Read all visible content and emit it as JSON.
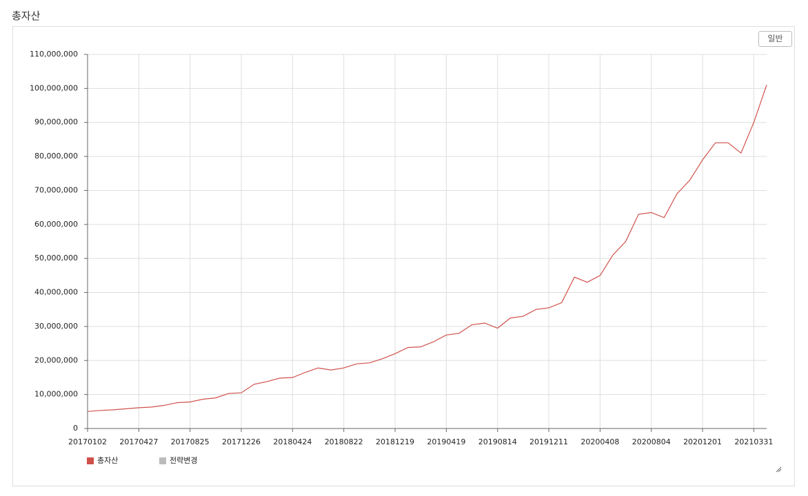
{
  "page_title": "총자산",
  "button_label": "일반",
  "chart_data": {
    "type": "line",
    "categories": [
      "20170102",
      null,
      null,
      null,
      "20170427",
      null,
      null,
      null,
      "20170825",
      null,
      null,
      null,
      "20171226",
      null,
      null,
      null,
      "20180424",
      null,
      null,
      null,
      "20180822",
      null,
      null,
      null,
      "20181219",
      null,
      null,
      null,
      "20190419",
      null,
      null,
      null,
      "20190814",
      null,
      null,
      null,
      "20191211",
      null,
      null,
      null,
      "20200408",
      null,
      null,
      null,
      "20200804",
      null,
      null,
      null,
      "20201201",
      null,
      null,
      null,
      "20210331",
      null
    ],
    "series": [
      {
        "name": "총자산",
        "color": "#d0504a",
        "values": [
          5000000,
          5300000,
          5500000,
          5800000,
          6100000,
          6300000,
          6800000,
          7600000,
          7800000,
          8600000,
          9000000,
          10300000,
          10500000,
          13000000,
          13800000,
          14800000,
          15000000,
          16500000,
          17800000,
          17200000,
          17800000,
          19000000,
          19300000,
          20500000,
          22000000,
          23800000,
          24000000,
          25500000,
          27500000,
          28000000,
          30500000,
          31000000,
          29500000,
          32500000,
          33000000,
          35000000,
          35500000,
          37000000,
          44500000,
          43000000,
          45000000,
          51000000,
          55000000,
          63000000,
          63500000,
          62000000,
          69000000,
          73000000,
          79000000,
          84000000,
          84000000,
          81000000,
          90000000,
          101000000
        ]
      },
      {
        "name": "전략변경",
        "color": "#bbbbbb",
        "values": [
          null,
          null,
          null,
          null,
          null,
          null,
          null,
          null,
          null,
          null,
          null,
          null,
          null,
          null,
          null,
          null,
          null,
          null,
          null,
          null,
          null,
          null,
          null,
          null,
          null,
          null,
          null,
          null,
          null,
          null,
          null,
          null,
          null,
          null,
          null,
          null,
          null,
          null,
          null,
          null,
          null,
          null,
          null,
          null,
          null,
          null,
          null,
          null,
          null,
          null,
          null,
          null,
          null,
          null
        ]
      }
    ],
    "ylim": [
      0,
      110000000
    ],
    "yticks": [
      0,
      {
        "value": 10000000,
        "label": "10,000,000"
      },
      {
        "value": 20000000,
        "label": "20,000,000"
      },
      {
        "value": 30000000,
        "label": "30,000,000"
      },
      {
        "value": 40000000,
        "label": "40,000,000"
      },
      {
        "value": 50000000,
        "label": "50,000,000"
      },
      {
        "value": 60000000,
        "label": "60,000,000"
      },
      {
        "value": 70000000,
        "label": "70,000,000"
      },
      {
        "value": 80000000,
        "label": "80,000,000"
      },
      {
        "value": 90000000,
        "label": "90,000,000"
      },
      {
        "value": 100000000,
        "label": "100,000,000"
      },
      {
        "value": 110000000,
        "label": "110,000,000"
      }
    ],
    "grid": true,
    "legend": "bottom-left"
  }
}
